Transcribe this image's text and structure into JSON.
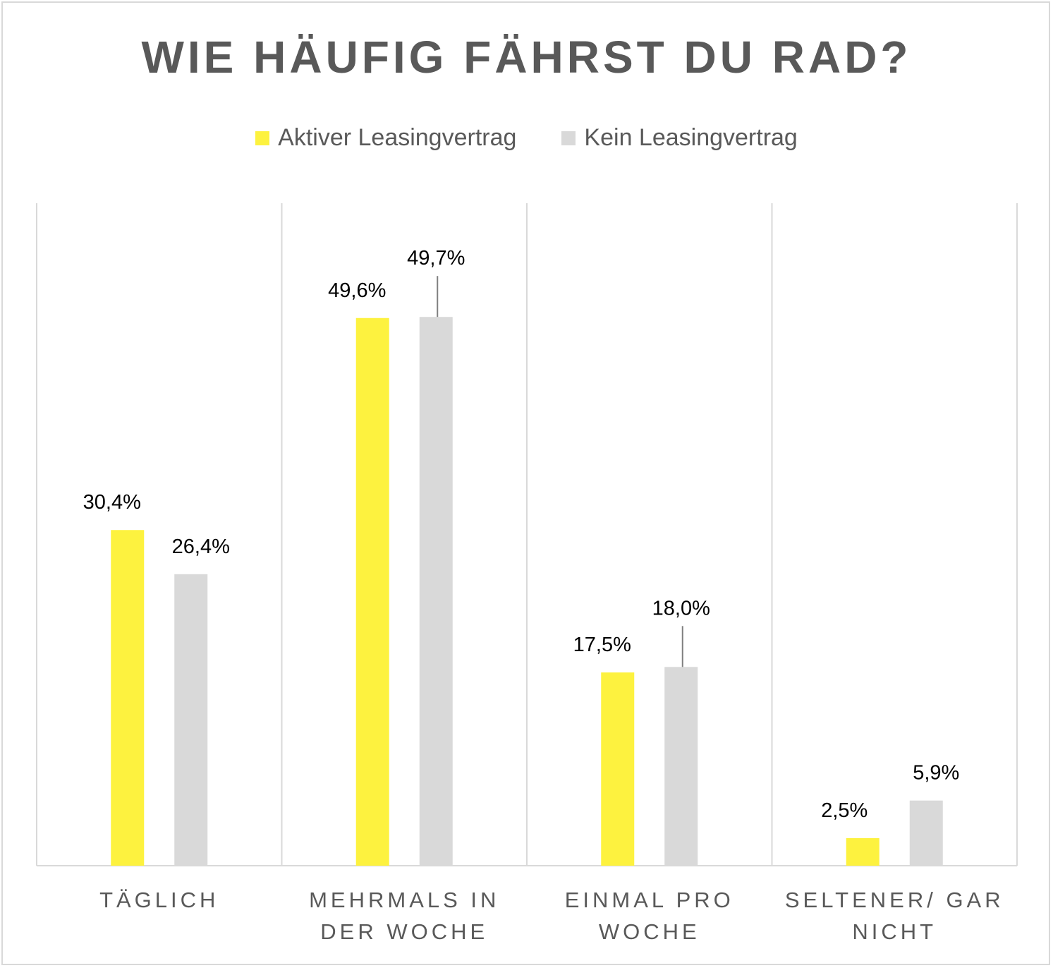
{
  "chart_data": {
    "type": "bar",
    "title": "WIE HÄUFIG FÄHRST DU RAD?",
    "categories": [
      [
        "TÄGLICH"
      ],
      [
        "MEHRMALS IN",
        "DER WOCHE"
      ],
      [
        "EINMAL PRO",
        "WOCHE"
      ],
      [
        "SELTENER/ GAR",
        "NICHT"
      ]
    ],
    "series": [
      {
        "name": "Aktiver Leasingvertrag",
        "color": "#fdf23f",
        "values": [
          30.4,
          49.6,
          17.5,
          2.5
        ],
        "labels": [
          "30,4%",
          "49,6%",
          "17,5%",
          "2,5%"
        ]
      },
      {
        "name": "Kein Leasingvertrag",
        "color": "#d9d9d9",
        "values": [
          26.4,
          49.7,
          18.0,
          5.9
        ],
        "labels": [
          "26,4%",
          "49,7%",
          "18,0%",
          "5,9%"
        ]
      }
    ],
    "ylim": [
      0,
      60
    ],
    "legend": "top-center",
    "grid": "vertical category separators"
  }
}
